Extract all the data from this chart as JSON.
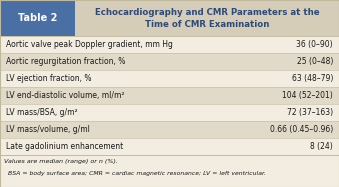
{
  "table_label": "Table 2",
  "title_line1": "Echocardiography and CMR Parameters at the",
  "title_line2": "Time of CMR Examination",
  "header_bg": "#d6cdb8",
  "table_label_bg": "#4a6fa5",
  "table_label_color": "#ffffff",
  "title_color": "#2c4a7a",
  "row_bg_light": "#f2ede0",
  "row_bg_dark": "#e2dac8",
  "separator_color": "#c0b89a",
  "text_color": "#1a1a1a",
  "footer_bg": "#f2ede0",
  "rows": [
    [
      "Aortic valve peak Doppler gradient, mm Hg",
      "36 (0–90)"
    ],
    [
      "Aortic regurgitation fraction, %",
      "25 (0–48)"
    ],
    [
      "LV ejection fraction, %",
      "63 (48–79)"
    ],
    [
      "LV end-diastolic volume, ml/m²",
      "104 (52–201)"
    ],
    [
      "LV mass/BSA, g/m²",
      "72 (37–163)"
    ],
    [
      "LV mass/volume, g/ml",
      "0.66 (0.45–0.96)"
    ],
    [
      "Late gadolinium enhancement",
      "8 (24)"
    ]
  ],
  "footer_line1": "Values are median (range) or n (%).",
  "footer_line2": "  BSA = body surface area; CMR = cardiac magnetic resonance; LV = left ventricular."
}
